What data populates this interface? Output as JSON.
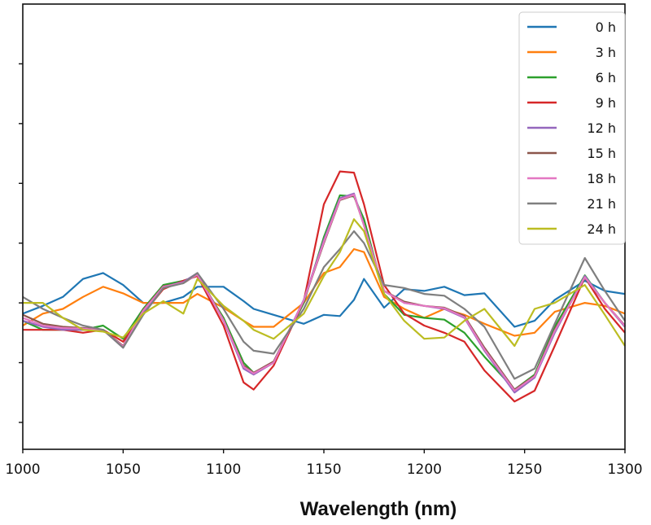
{
  "chart_data": {
    "type": "line",
    "title": "",
    "xlabel": "Wavelength (nm)",
    "ylabel": "",
    "xlim": [
      1000,
      1300
    ],
    "ylim": [
      -2.45,
      5.0
    ],
    "xticks": [
      1000,
      1050,
      1100,
      1150,
      1200,
      1250,
      1300
    ],
    "xtick_labels": [
      "1000",
      "1050",
      "1100",
      "1150",
      "1200",
      "1250",
      "1300"
    ],
    "yticks": [
      -2,
      -1,
      0,
      1,
      2,
      3,
      4
    ],
    "ytick_labels_shown": false,
    "grid": false,
    "legend_position": "top-right",
    "x": [
      1000,
      1010,
      1020,
      1030,
      1040,
      1050,
      1060,
      1070,
      1080,
      1087,
      1100,
      1110,
      1115,
      1125,
      1140,
      1150,
      1158,
      1165,
      1170,
      1180,
      1190,
      1200,
      1210,
      1220,
      1230,
      1245,
      1255,
      1265,
      1280,
      1290,
      1300
    ],
    "series": [
      {
        "name": "0 h",
        "color": "#1f77b4",
        "values": [
          -0.18,
          -0.05,
          0.1,
          0.4,
          0.5,
          0.3,
          0.0,
          0.0,
          0.1,
          0.27,
          0.27,
          0.03,
          -0.1,
          -0.2,
          -0.35,
          -0.2,
          -0.22,
          0.05,
          0.4,
          -0.08,
          0.23,
          0.2,
          0.27,
          0.13,
          0.16,
          -0.4,
          -0.3,
          0.05,
          0.37,
          0.2,
          0.15
        ]
      },
      {
        "name": "3 h",
        "color": "#ff7f0e",
        "values": [
          -0.38,
          -0.18,
          -0.1,
          0.1,
          0.27,
          0.16,
          0,
          0,
          0,
          0.15,
          -0.08,
          -0.3,
          -0.4,
          -0.4,
          0.0,
          0.5,
          0.6,
          0.9,
          0.85,
          0.1,
          -0.1,
          -0.25,
          -0.1,
          -0.2,
          -0.35,
          -0.55,
          -0.5,
          -0.15,
          0.0,
          -0.05,
          -0.18
        ]
      },
      {
        "name": "6 h",
        "color": "#2ca02c",
        "values": [
          -0.3,
          -0.45,
          -0.45,
          -0.45,
          -0.38,
          -0.6,
          -0.1,
          0.3,
          0.37,
          0.45,
          -0.25,
          -1.0,
          -1.17,
          -1.0,
          0.0,
          1.1,
          1.8,
          1.78,
          1.4,
          0.15,
          -0.2,
          -0.25,
          -0.28,
          -0.5,
          -0.9,
          -1.45,
          -1.2,
          -0.4,
          0.46,
          0.0,
          -0.4
        ]
      },
      {
        "name": "9 h",
        "color": "#d62728",
        "values": [
          -0.45,
          -0.45,
          -0.45,
          -0.5,
          -0.45,
          -0.65,
          -0.18,
          0.23,
          0.37,
          0.45,
          -0.38,
          -1.33,
          -1.45,
          -1.05,
          0.03,
          1.65,
          2.2,
          2.18,
          1.65,
          0.3,
          -0.18,
          -0.38,
          -0.5,
          -0.65,
          -1.13,
          -1.65,
          -1.47,
          -0.72,
          0.43,
          -0.1,
          -0.5
        ]
      },
      {
        "name": "12 h",
        "color": "#9467bd",
        "values": [
          -0.3,
          -0.4,
          -0.45,
          -0.45,
          -0.45,
          -0.75,
          -0.15,
          0.27,
          0.35,
          0.5,
          -0.3,
          -1.1,
          -1.2,
          -1.0,
          0.05,
          1.05,
          1.75,
          1.83,
          1.3,
          0.2,
          0.0,
          -0.05,
          -0.1,
          -0.25,
          -0.8,
          -1.5,
          -1.25,
          -0.5,
          0.45,
          0.0,
          -0.4
        ]
      },
      {
        "name": "15 h",
        "color": "#8c564b",
        "values": [
          -0.2,
          -0.35,
          -0.4,
          -0.42,
          -0.45,
          -0.72,
          -0.12,
          0.28,
          0.33,
          0.48,
          -0.28,
          -1.05,
          -1.17,
          -0.98,
          0.03,
          1.0,
          1.72,
          1.8,
          1.3,
          0.2,
          0.02,
          -0.05,
          -0.08,
          -0.22,
          -0.75,
          -1.45,
          -1.22,
          -0.45,
          0.42,
          0.0,
          -0.38
        ]
      },
      {
        "name": "18 h",
        "color": "#e377c2",
        "values": [
          -0.25,
          -0.38,
          -0.42,
          -0.43,
          -0.46,
          -0.73,
          -0.13,
          0.27,
          0.34,
          0.47,
          -0.29,
          -1.07,
          -1.18,
          -1.0,
          0.04,
          1.02,
          1.73,
          1.81,
          1.3,
          0.2,
          0.0,
          -0.05,
          -0.09,
          -0.24,
          -0.78,
          -1.47,
          -1.23,
          -0.47,
          0.43,
          0.0,
          -0.39
        ]
      },
      {
        "name": "21 h",
        "color": "#7f7f7f",
        "values": [
          0.1,
          -0.1,
          -0.25,
          -0.38,
          -0.45,
          -0.75,
          -0.2,
          0.25,
          0.33,
          0.5,
          -0.1,
          -0.65,
          -0.8,
          -0.85,
          -0.1,
          0.6,
          0.9,
          1.2,
          1.0,
          0.3,
          0.25,
          0.15,
          0.12,
          -0.1,
          -0.4,
          -1.27,
          -1.1,
          -0.35,
          0.75,
          0.2,
          -0.3
        ]
      },
      {
        "name": "24 h",
        "color": "#bcbd22",
        "values": [
          0.0,
          0.0,
          -0.25,
          -0.45,
          -0.48,
          -0.58,
          -0.18,
          0.03,
          -0.18,
          0.4,
          -0.05,
          -0.3,
          -0.45,
          -0.6,
          -0.18,
          0.45,
          0.85,
          1.4,
          1.2,
          0.15,
          -0.3,
          -0.6,
          -0.58,
          -0.3,
          -0.1,
          -0.72,
          -0.1,
          0.0,
          0.3,
          -0.2,
          -0.72
        ]
      }
    ]
  }
}
